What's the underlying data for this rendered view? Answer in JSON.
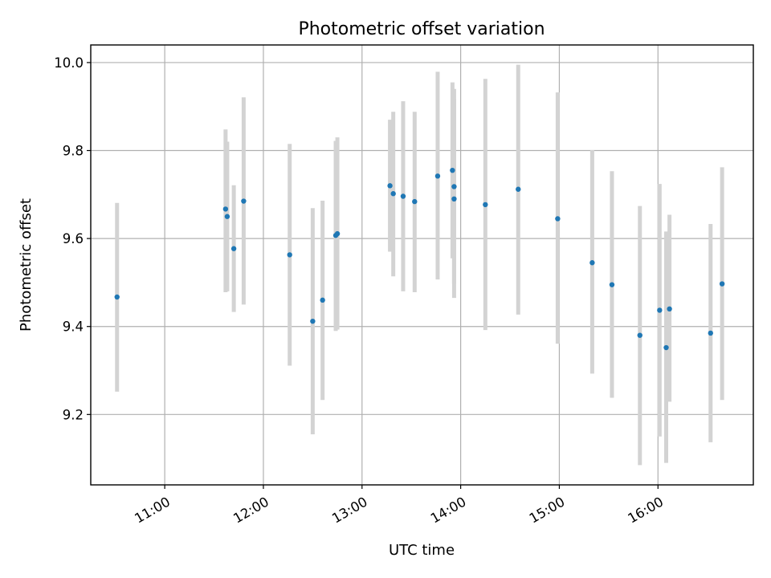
{
  "chart_data": {
    "type": "scatter",
    "title": "Photometric offset variation",
    "xlabel": "UTC time",
    "ylabel": "Photometric offset",
    "x_axis": "time",
    "xlim": [
      "10:15",
      "16:58"
    ],
    "ylim": [
      9.04,
      10.04
    ],
    "xticks": [
      "11:00",
      "12:00",
      "13:00",
      "14:00",
      "15:00",
      "16:00"
    ],
    "yticks": [
      9.2,
      9.4,
      9.6,
      9.8,
      10.0
    ],
    "ytick_labels": [
      "9.2",
      "9.4",
      "9.6",
      "9.8",
      "10.0"
    ],
    "grid": true,
    "marker_color": "#1f77b4",
    "errorbar_color": "#d3d3d3",
    "points": [
      {
        "time": "10:31",
        "y": 9.467,
        "ylow": 9.252,
        "yhigh": 9.681
      },
      {
        "time": "11:37",
        "y": 9.667,
        "ylow": 9.478,
        "yhigh": 9.848
      },
      {
        "time": "11:38",
        "y": 9.65,
        "ylow": 9.48,
        "yhigh": 9.82
      },
      {
        "time": "11:42",
        "y": 9.577,
        "ylow": 9.433,
        "yhigh": 9.721
      },
      {
        "time": "11:48",
        "y": 9.685,
        "ylow": 9.45,
        "yhigh": 9.921
      },
      {
        "time": "12:16",
        "y": 9.563,
        "ylow": 9.311,
        "yhigh": 9.815
      },
      {
        "time": "12:30",
        "y": 9.412,
        "ylow": 9.155,
        "yhigh": 9.669
      },
      {
        "time": "12:36",
        "y": 9.46,
        "ylow": 9.233,
        "yhigh": 9.686
      },
      {
        "time": "12:44",
        "y": 9.607,
        "ylow": 9.39,
        "yhigh": 9.822
      },
      {
        "time": "12:45",
        "y": 9.611,
        "ylow": 9.393,
        "yhigh": 9.83
      },
      {
        "time": "13:17",
        "y": 9.72,
        "ylow": 9.57,
        "yhigh": 9.87
      },
      {
        "time": "13:19",
        "y": 9.702,
        "ylow": 9.514,
        "yhigh": 9.888
      },
      {
        "time": "13:25",
        "y": 9.696,
        "ylow": 9.48,
        "yhigh": 9.912
      },
      {
        "time": "13:32",
        "y": 9.684,
        "ylow": 9.478,
        "yhigh": 9.888
      },
      {
        "time": "13:46",
        "y": 9.742,
        "ylow": 9.507,
        "yhigh": 9.979
      },
      {
        "time": "13:55",
        "y": 9.755,
        "ylow": 9.555,
        "yhigh": 9.955
      },
      {
        "time": "13:56",
        "y": 9.718,
        "ylow": 9.497,
        "yhigh": 9.94
      },
      {
        "time": "13:56",
        "y": 9.69,
        "ylow": 9.465,
        "yhigh": 9.918
      },
      {
        "time": "14:15",
        "y": 9.677,
        "ylow": 9.392,
        "yhigh": 9.963
      },
      {
        "time": "14:35",
        "y": 9.712,
        "ylow": 9.427,
        "yhigh": 9.995
      },
      {
        "time": "14:59",
        "y": 9.645,
        "ylow": 9.361,
        "yhigh": 9.932
      },
      {
        "time": "15:20",
        "y": 9.545,
        "ylow": 9.293,
        "yhigh": 9.801
      },
      {
        "time": "15:32",
        "y": 9.495,
        "ylow": 9.238,
        "yhigh": 9.753
      },
      {
        "time": "15:49",
        "y": 9.38,
        "ylow": 9.085,
        "yhigh": 9.674
      },
      {
        "time": "16:01",
        "y": 9.437,
        "ylow": 9.15,
        "yhigh": 9.724
      },
      {
        "time": "16:05",
        "y": 9.352,
        "ylow": 9.09,
        "yhigh": 9.616
      },
      {
        "time": "16:07",
        "y": 9.44,
        "ylow": 9.229,
        "yhigh": 9.654
      },
      {
        "time": "16:32",
        "y": 9.385,
        "ylow": 9.137,
        "yhigh": 9.633
      },
      {
        "time": "16:39",
        "y": 9.497,
        "ylow": 9.233,
        "yhigh": 9.762
      }
    ]
  }
}
